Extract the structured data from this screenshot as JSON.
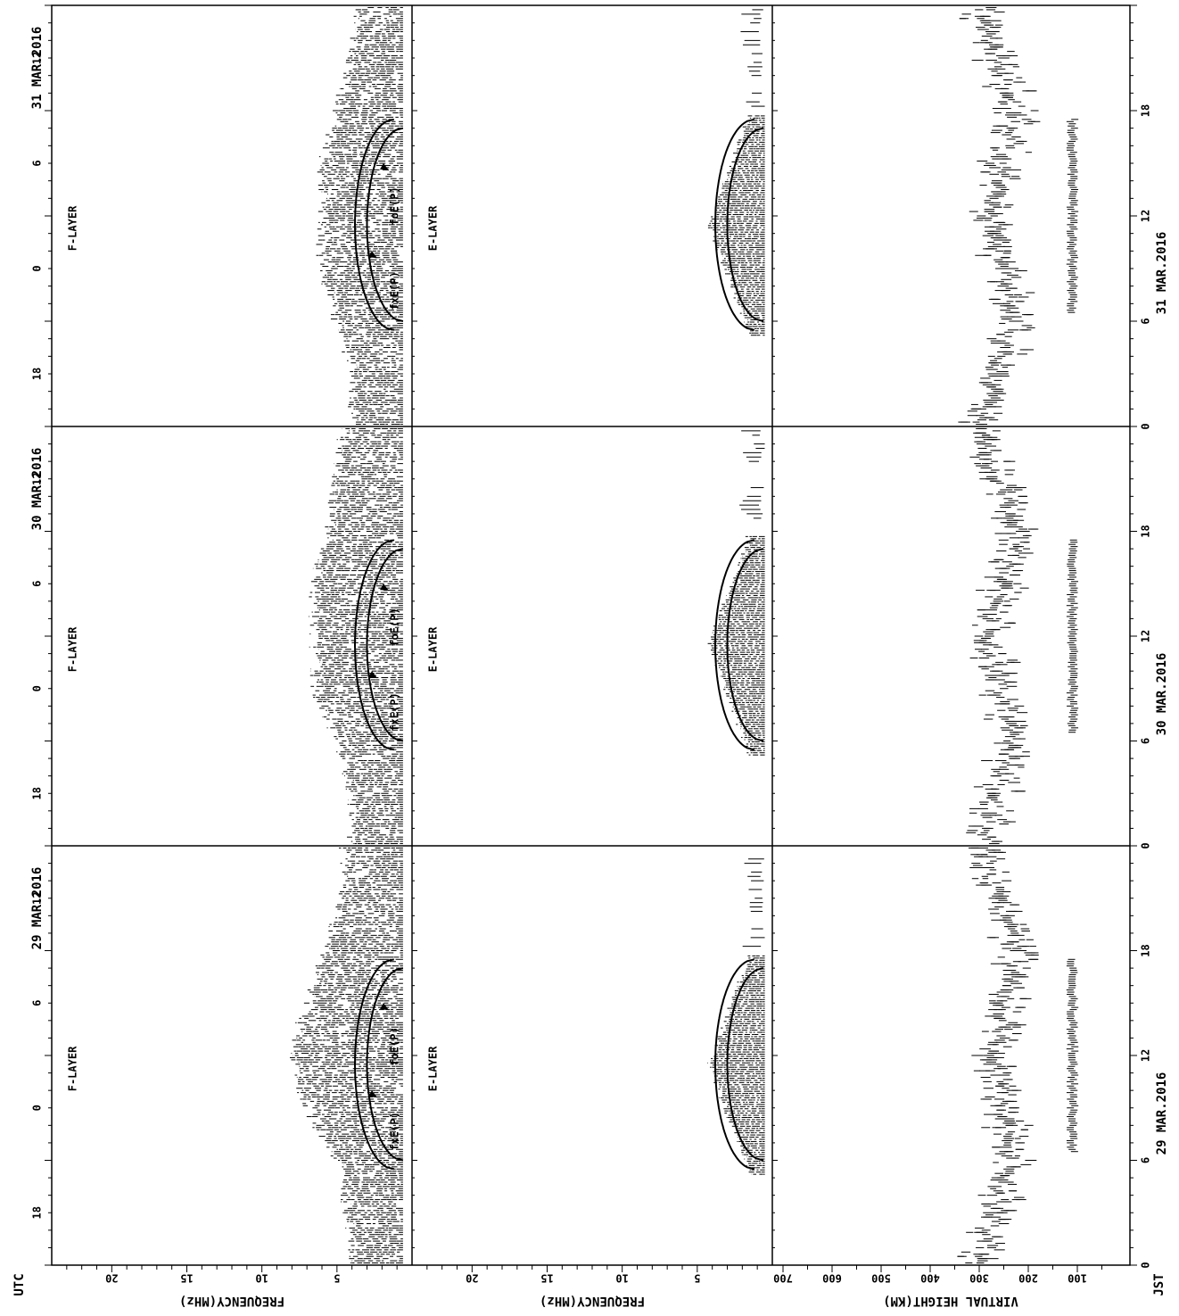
{
  "chart_data": {
    "type": "scatter",
    "title": "",
    "labels": {
      "utc": "UTC",
      "jst": "JST",
      "freq_axis": "FREQUENCY(MHz)",
      "height_axis": "VIRTUAL HEIGHT(KM)",
      "f_layer": "F-LAYER",
      "e_layer": "E-LAYER",
      "fxe": "fxE(P)",
      "foe": "foE(P)"
    },
    "utc_ticks": [
      "18",
      "0",
      "6",
      "12"
    ],
    "jst_ticks": [
      "0",
      "6",
      "12",
      "18"
    ],
    "freq_ticks": [
      "5",
      "10",
      "15",
      "20"
    ],
    "height_ticks": [
      "100",
      "200",
      "300",
      "400",
      "500",
      "600",
      "700"
    ],
    "axes": {
      "time_utc_hours": [
        -9,
        15
      ],
      "frequency_mhz": [
        0,
        24
      ],
      "virtual_height_km": [
        0,
        700
      ]
    },
    "days": [
      {
        "date": "29 MAR.2016",
        "f_layer_range_mhz": [
          {
            "utc": -9,
            "min": 0.6,
            "max": 4.2
          },
          {
            "utc": -6,
            "min": 0.6,
            "max": 4.3
          },
          {
            "utc": -3,
            "min": 0.6,
            "max": 5.0
          },
          {
            "utc": 0,
            "min": 0.6,
            "max": 7.0
          },
          {
            "utc": 3,
            "min": 0.6,
            "max": 8.0
          },
          {
            "utc": 6,
            "min": 0.6,
            "max": 7.0
          },
          {
            "utc": 9,
            "min": 0.6,
            "max": 5.8
          },
          {
            "utc": 12,
            "min": 0.6,
            "max": 4.5
          },
          {
            "utc": 15,
            "min": 0.6,
            "max": 4.5
          }
        ],
        "fxE": [
          {
            "utc": -3.5,
            "mhz": 1.2
          },
          {
            "utc": 2.5,
            "mhz": 3.8
          },
          {
            "utc": 8.5,
            "mhz": 1.2
          }
        ],
        "foE": [
          {
            "utc": -3.0,
            "mhz": 0.6
          },
          {
            "utc": 2.5,
            "mhz": 3.0
          },
          {
            "utc": 8.0,
            "mhz": 0.6
          }
        ],
        "es_heights_km": [
          {
            "jst": 6.5,
            "km": 110
          },
          {
            "jst": 17.5,
            "km": 110
          }
        ],
        "f_heights_km": [
          {
            "jst": 0,
            "km": 300
          },
          {
            "jst": 6,
            "km": 230
          },
          {
            "jst": 12,
            "km": 270
          },
          {
            "jst": 18,
            "km": 220
          },
          {
            "jst": 23,
            "km": 280
          }
        ]
      },
      {
        "date": "30 MAR.2016",
        "f_layer_range_mhz": [
          {
            "utc": -9,
            "min": 0.6,
            "max": 4.0
          },
          {
            "utc": -6,
            "min": 0.6,
            "max": 4.0
          },
          {
            "utc": -3,
            "min": 0.6,
            "max": 5.0
          },
          {
            "utc": 0,
            "min": 0.6,
            "max": 6.5
          },
          {
            "utc": 3,
            "min": 0.6,
            "max": 6.5
          },
          {
            "utc": 6,
            "min": 0.6,
            "max": 6.5
          },
          {
            "utc": 9,
            "min": 0.6,
            "max": 5.5
          },
          {
            "utc": 12,
            "min": 0.6,
            "max": 5.0
          },
          {
            "utc": 15,
            "min": 0.6,
            "max": 4.5
          }
        ],
        "fxE": [
          {
            "utc": -3.5,
            "mhz": 1.2
          },
          {
            "utc": 2.5,
            "mhz": 3.8
          },
          {
            "utc": 8.5,
            "mhz": 1.2
          }
        ],
        "foE": [
          {
            "utc": -3.0,
            "mhz": 0.6
          },
          {
            "utc": 2.5,
            "mhz": 3.0
          },
          {
            "utc": 8.0,
            "mhz": 0.6
          }
        ],
        "es_heights_km": [
          {
            "jst": 6.5,
            "km": 110
          },
          {
            "jst": 17.5,
            "km": 110
          }
        ],
        "f_heights_km": [
          {
            "jst": 0,
            "km": 290
          },
          {
            "jst": 6,
            "km": 230
          },
          {
            "jst": 12,
            "km": 280
          },
          {
            "jst": 18,
            "km": 220
          },
          {
            "jst": 23,
            "km": 290
          }
        ]
      },
      {
        "date": "31 MAR.2016",
        "f_layer_range_mhz": [
          {
            "utc": -9,
            "min": 0.6,
            "max": 4.0
          },
          {
            "utc": -6,
            "min": 0.6,
            "max": 3.8
          },
          {
            "utc": -3,
            "min": 0.6,
            "max": 5.0
          },
          {
            "utc": 0,
            "min": 0.6,
            "max": 6.0
          },
          {
            "utc": 3,
            "min": 0.6,
            "max": 6.0
          },
          {
            "utc": 6,
            "min": 0.6,
            "max": 6.0
          },
          {
            "utc": 9,
            "min": 0.6,
            "max": 5.0
          },
          {
            "utc": 12,
            "min": 0.6,
            "max": 4.0
          },
          {
            "utc": 15,
            "min": 0.6,
            "max": 3.5
          }
        ],
        "fxE": [
          {
            "utc": -3.5,
            "mhz": 1.2
          },
          {
            "utc": 2.5,
            "mhz": 3.8
          },
          {
            "utc": 8.5,
            "mhz": 1.2
          }
        ],
        "foE": [
          {
            "utc": -3.0,
            "mhz": 0.6
          },
          {
            "utc": 2.5,
            "mhz": 3.0
          },
          {
            "utc": 8.0,
            "mhz": 0.6
          }
        ],
        "es_heights_km": [
          {
            "jst": 6.5,
            "km": 110
          },
          {
            "jst": 17.5,
            "km": 110
          }
        ],
        "f_heights_km": [
          {
            "jst": 0,
            "km": 300
          },
          {
            "jst": 6,
            "km": 220
          },
          {
            "jst": 12,
            "km": 280
          },
          {
            "jst": 18,
            "km": 220
          },
          {
            "jst": 23,
            "km": 290
          }
        ]
      }
    ]
  }
}
